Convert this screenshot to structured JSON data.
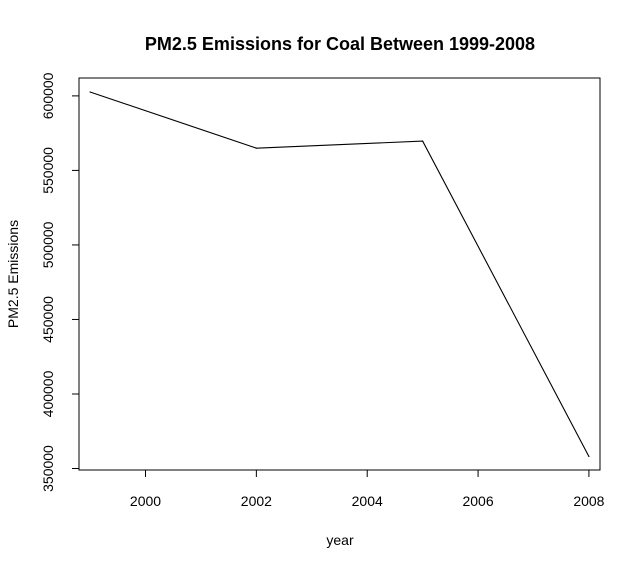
{
  "chart_data": {
    "type": "line",
    "title": "PM2.5 Emissions for Coal Between 1999-2008",
    "xlabel": "year",
    "ylabel": "PM2.5 Emissions",
    "x": [
      1999,
      2002,
      2005,
      2008
    ],
    "series": [
      {
        "values": [
          602624,
          564936,
          569654,
          358084
        ]
      }
    ],
    "xlim": [
      1998.8,
      2008.2
    ],
    "ylim": [
      349000,
      612000
    ],
    "xticks": [
      2000,
      2002,
      2004,
      2006,
      2008
    ],
    "yticks": [
      350000,
      400000,
      450000,
      500000,
      550000,
      600000
    ],
    "xtick_labels": [
      "2000",
      "2002",
      "2004",
      "2006",
      "2008"
    ],
    "ytick_labels": [
      "350000",
      "400000",
      "450000",
      "500000",
      "550000",
      "600000"
    ],
    "grid": false,
    "colors": {
      "line": "#000000",
      "frame": "#000000"
    }
  }
}
